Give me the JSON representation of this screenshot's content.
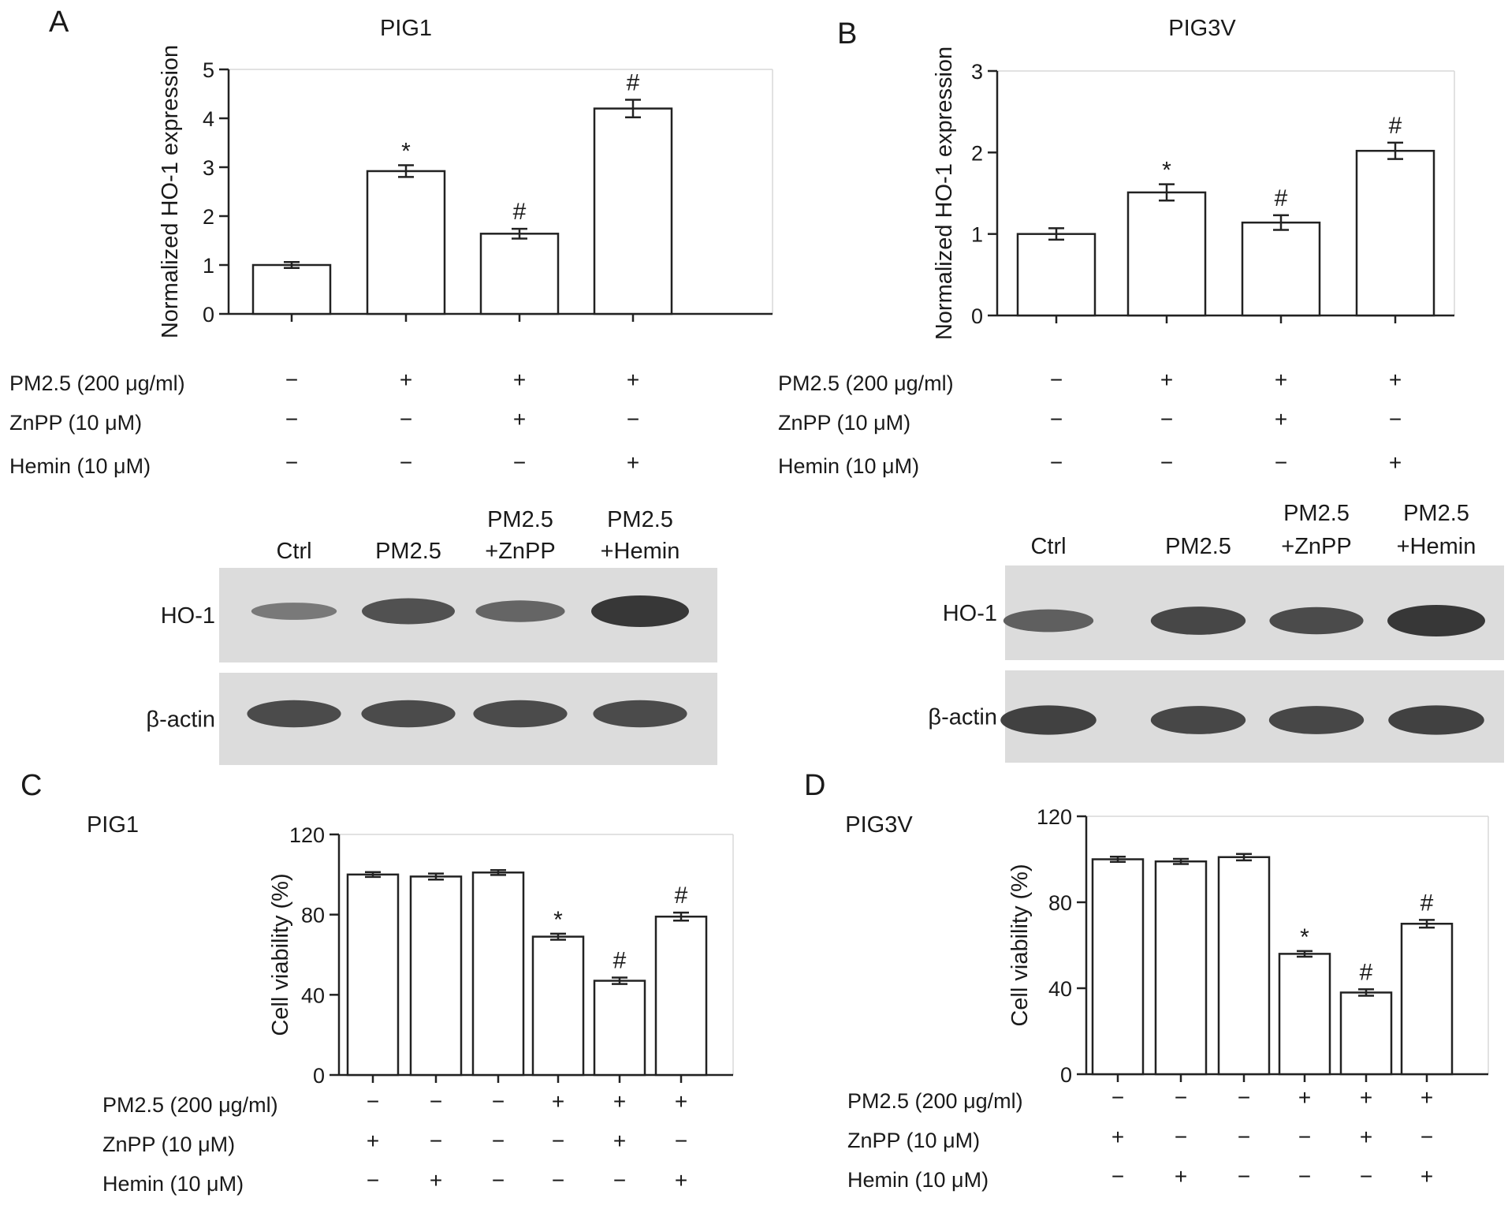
{
  "figure": {
    "panels": [
      {
        "letter": "A",
        "chart_index": 0
      },
      {
        "letter": "B",
        "chart_index": 1
      },
      {
        "letter": "C",
        "chart_index": 2
      },
      {
        "letter": "D",
        "chart_index": 3
      }
    ],
    "blots": [
      {
        "panel": "A",
        "lanes": [
          [
            "Ctrl"
          ],
          [
            "PM2.5"
          ],
          [
            "PM2.5",
            "+ZnPP"
          ],
          [
            "PM2.5",
            "+Hemin"
          ]
        ],
        "rows": [
          {
            "label": "HO-1",
            "band_intensity": [
              0.35,
              0.75,
              0.55,
              1.0
            ]
          },
          {
            "label": "β-actin",
            "band_intensity": [
              0.8,
              0.8,
              0.8,
              0.8
            ]
          }
        ]
      },
      {
        "panel": "B",
        "lanes": [
          [
            "Ctrl"
          ],
          [
            "PM2.5"
          ],
          [
            "PM2.5",
            "+ZnPP"
          ],
          [
            "PM2.5",
            "+Hemin"
          ]
        ],
        "rows": [
          {
            "label": "HO-1",
            "band_intensity": [
              0.6,
              0.85,
              0.8,
              1.0
            ]
          },
          {
            "label": "β-actin",
            "band_intensity": [
              0.9,
              0.85,
              0.85,
              0.9
            ]
          }
        ]
      }
    ]
  },
  "chart_data": [
    {
      "type": "bar",
      "title": "PIG1",
      "ylabel": "Normalized HO-1 expression",
      "ylim": [
        0,
        5
      ],
      "yticks": [
        0,
        1,
        2,
        3,
        4,
        5
      ],
      "values": [
        1.0,
        2.92,
        1.64,
        4.2
      ],
      "errors": [
        0.06,
        0.12,
        0.1,
        0.18
      ],
      "annotations": [
        "",
        "*",
        "#",
        "#"
      ],
      "conditions": [
        {
          "label": "PM2.5 (200 μg/ml)",
          "signs": [
            "−",
            "+",
            "+",
            "+"
          ]
        },
        {
          "label": "ZnPP (10 μM)",
          "signs": [
            "−",
            "−",
            "+",
            "−"
          ]
        },
        {
          "label": "Hemin (10 μM)",
          "signs": [
            "−",
            "−",
            "−",
            "+"
          ]
        }
      ]
    },
    {
      "type": "bar",
      "title": "PIG3V",
      "ylabel": "Normalized HO-1 expression",
      "ylim": [
        0,
        3
      ],
      "yticks": [
        0,
        1,
        2,
        3
      ],
      "values": [
        1.0,
        1.51,
        1.14,
        2.02
      ],
      "errors": [
        0.07,
        0.1,
        0.09,
        0.1
      ],
      "annotations": [
        "",
        "*",
        "#",
        "#"
      ],
      "conditions": [
        {
          "label": "PM2.5 (200 μg/ml)",
          "signs": [
            "−",
            "+",
            "+",
            "+"
          ]
        },
        {
          "label": "ZnPP (10 μM)",
          "signs": [
            "−",
            "−",
            "+",
            "−"
          ]
        },
        {
          "label": "Hemin (10 μM)",
          "signs": [
            "−",
            "−",
            "−",
            "+"
          ]
        }
      ]
    },
    {
      "type": "bar",
      "title": "PIG1",
      "ylabel": "Cell viability (%)",
      "ylim": [
        0,
        120
      ],
      "yticks": [
        0,
        40,
        80,
        120
      ],
      "values": [
        100,
        99,
        101,
        69,
        47,
        79
      ],
      "errors": [
        1.2,
        1.5,
        1.2,
        1.5,
        1.6,
        2.0
      ],
      "annotations": [
        "",
        "",
        "",
        "*",
        "#",
        "#"
      ],
      "conditions": [
        {
          "label": "PM2.5 (200 μg/ml)",
          "signs": [
            "−",
            "−",
            "−",
            "+",
            "+",
            "+"
          ]
        },
        {
          "label": "ZnPP (10 μM)",
          "signs": [
            "+",
            "−",
            "−",
            "−",
            "+",
            "−"
          ]
        },
        {
          "label": "Hemin (10 μM)",
          "signs": [
            "−",
            "+",
            "−",
            "−",
            "−",
            "+"
          ]
        }
      ]
    },
    {
      "type": "bar",
      "title": "PIG3V",
      "ylabel": "Cell viability (%)",
      "ylim": [
        0,
        120
      ],
      "yticks": [
        0,
        40,
        80,
        120
      ],
      "values": [
        100,
        99,
        101,
        56,
        38,
        70
      ],
      "errors": [
        1.2,
        1.2,
        1.5,
        1.3,
        1.5,
        1.8
      ],
      "annotations": [
        "",
        "",
        "",
        "*",
        "#",
        "#"
      ],
      "conditions": [
        {
          "label": "PM2.5 (200 μg/ml)",
          "signs": [
            "−",
            "−",
            "−",
            "+",
            "+",
            "+"
          ]
        },
        {
          "label": "ZnPP (10 μM)",
          "signs": [
            "+",
            "−",
            "−",
            "−",
            "+",
            "−"
          ]
        },
        {
          "label": "Hemin (10 μM)",
          "signs": [
            "−",
            "+",
            "−",
            "−",
            "−",
            "+"
          ]
        }
      ]
    }
  ]
}
